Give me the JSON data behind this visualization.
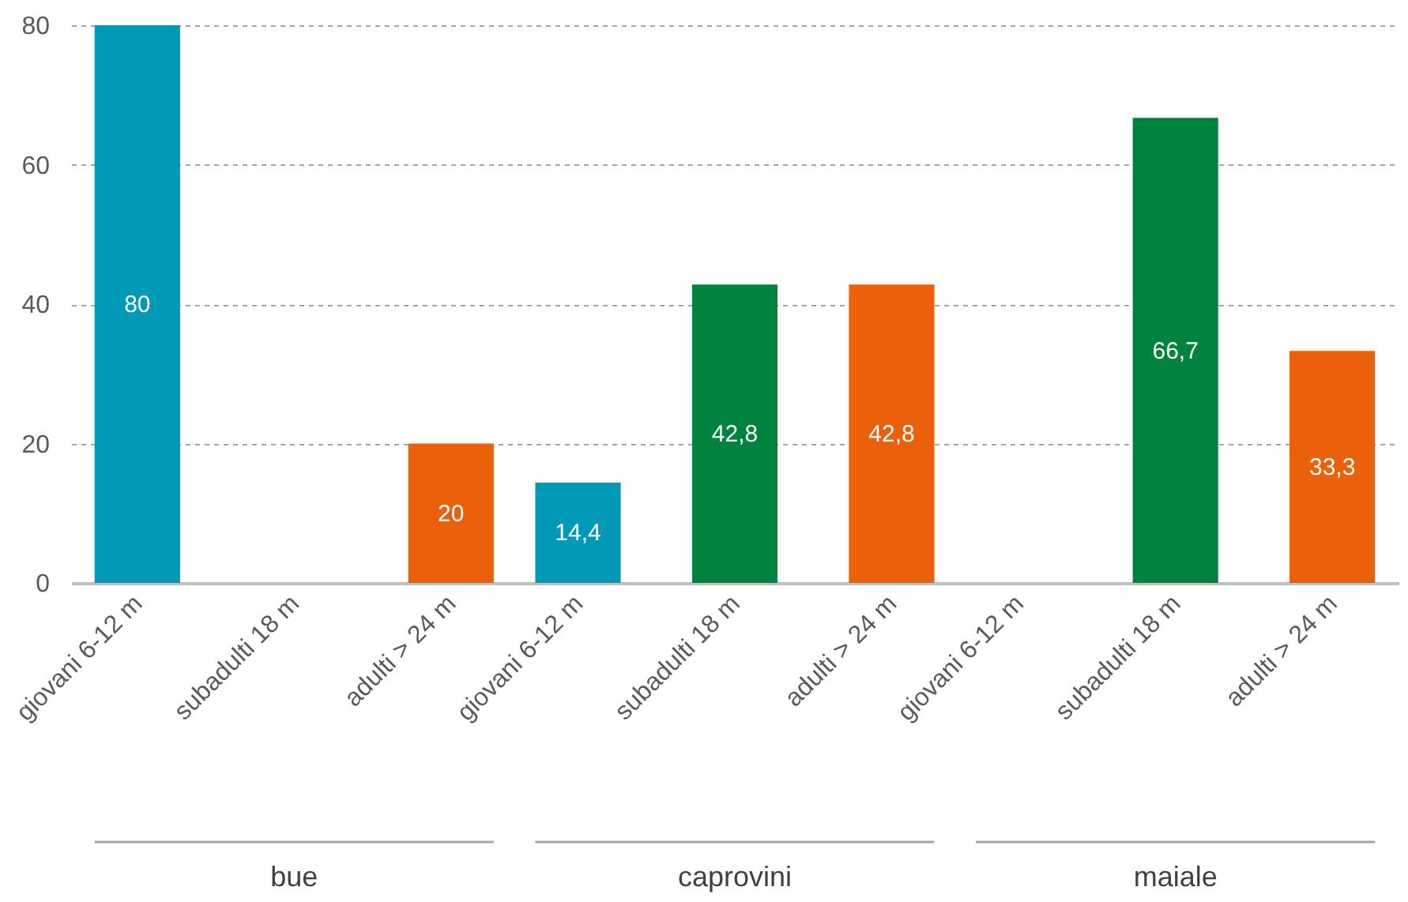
{
  "chart_data": {
    "type": "bar",
    "categories": [
      "giovani 6-12 m",
      "subadulti 18 m",
      "adulti > 24 m",
      "giovani 6-12 m",
      "subadulti 18 m",
      "adulti > 24 m",
      "giovani 6-12 m",
      "subadulti 18 m",
      "adulti > 24 m"
    ],
    "values": [
      80,
      null,
      20,
      14.4,
      42.8,
      42.8,
      null,
      66.7,
      33.3
    ],
    "colors": [
      "#0099b8",
      null,
      "#eb610b",
      "#0099b8",
      "#00833f",
      "#eb610b",
      null,
      "#00833f",
      "#eb610b"
    ],
    "value_labels": [
      "80",
      null,
      "20",
      "14,4",
      "42,8",
      "42,8",
      null,
      "66,7",
      "33,3"
    ],
    "ylim": [
      0,
      80
    ],
    "yticks": [
      0,
      20,
      40,
      60,
      80
    ],
    "grid": "y",
    "annotations": [
      "bue",
      "caprovini",
      "maiale"
    ]
  }
}
